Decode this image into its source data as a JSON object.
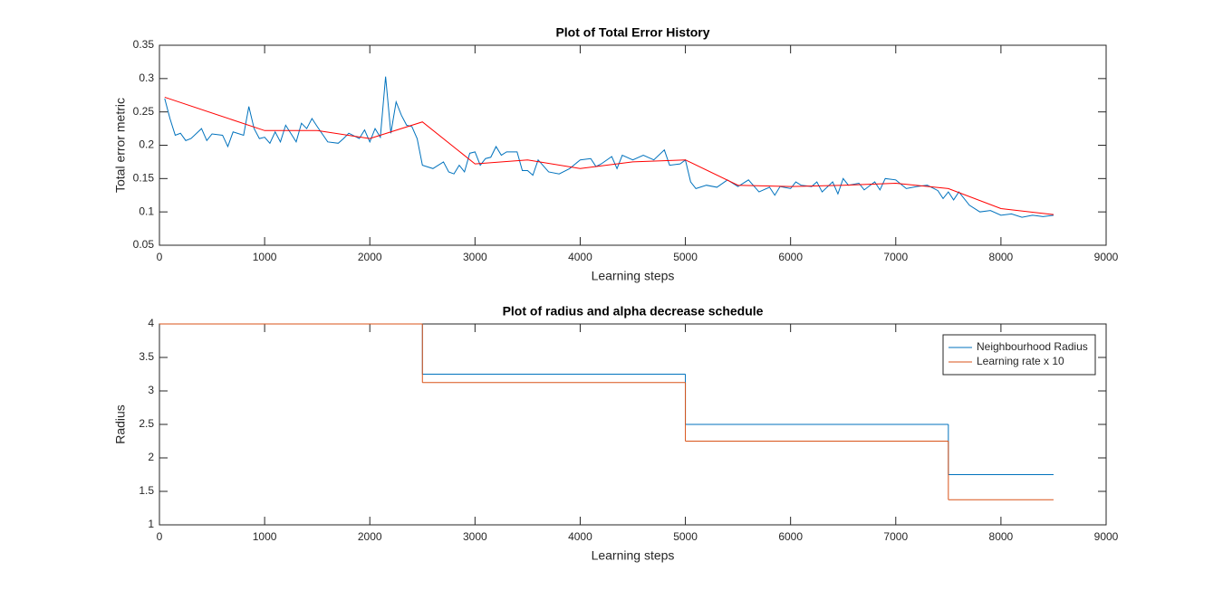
{
  "chart_data": [
    {
      "type": "line",
      "title": "Plot of Total Error History",
      "xlabel": "Learning steps",
      "ylabel": "Total error metric",
      "xlim": [
        0,
        9000
      ],
      "ylim": [
        0.05,
        0.35
      ],
      "xticks": [
        0,
        1000,
        2000,
        3000,
        4000,
        5000,
        6000,
        7000,
        8000,
        9000
      ],
      "yticks": [
        0.05,
        0.1,
        0.15,
        0.2,
        0.25,
        0.3,
        0.35
      ],
      "series": [
        {
          "color": "#0072BD",
          "x": [
            50,
            100,
            150,
            200,
            250,
            300,
            400,
            450,
            500,
            600,
            650,
            700,
            800,
            850,
            900,
            950,
            1000,
            1050,
            1100,
            1150,
            1200,
            1300,
            1350,
            1400,
            1450,
            1500,
            1600,
            1700,
            1750,
            1800,
            1900,
            1950,
            2000,
            2050,
            2100,
            2150,
            2200,
            2250,
            2300,
            2350,
            2400,
            2450,
            2500,
            2600,
            2700,
            2750,
            2800,
            2850,
            2900,
            2950,
            3000,
            3050,
            3100,
            3150,
            3200,
            3250,
            3300,
            3400,
            3450,
            3500,
            3550,
            3600,
            3700,
            3800,
            3900,
            4000,
            4100,
            4150,
            4200,
            4300,
            4350,
            4400,
            4500,
            4600,
            4700,
            4800,
            4850,
            4950,
            5000,
            5050,
            5100,
            5200,
            5300,
            5400,
            5500,
            5600,
            5700,
            5800,
            5850,
            5900,
            6000,
            6050,
            6100,
            6200,
            6250,
            6300,
            6400,
            6450,
            6500,
            6550,
            6650,
            6700,
            6800,
            6850,
            6900,
            7000,
            7100,
            7200,
            7300,
            7400,
            7450,
            7500,
            7550,
            7600,
            7700,
            7800,
            7900,
            8000,
            8100,
            8200,
            8300,
            8400,
            8500
          ],
          "values": [
            0.27,
            0.24,
            0.215,
            0.218,
            0.207,
            0.21,
            0.225,
            0.207,
            0.217,
            0.215,
            0.198,
            0.22,
            0.215,
            0.258,
            0.225,
            0.21,
            0.212,
            0.203,
            0.22,
            0.205,
            0.23,
            0.205,
            0.233,
            0.225,
            0.24,
            0.228,
            0.205,
            0.203,
            0.21,
            0.218,
            0.21,
            0.223,
            0.205,
            0.225,
            0.212,
            0.303,
            0.218,
            0.265,
            0.245,
            0.23,
            0.228,
            0.21,
            0.17,
            0.165,
            0.175,
            0.16,
            0.157,
            0.17,
            0.16,
            0.188,
            0.19,
            0.17,
            0.18,
            0.182,
            0.198,
            0.185,
            0.19,
            0.19,
            0.162,
            0.162,
            0.155,
            0.178,
            0.16,
            0.157,
            0.165,
            0.178,
            0.18,
            0.168,
            0.172,
            0.183,
            0.165,
            0.185,
            0.178,
            0.185,
            0.178,
            0.193,
            0.17,
            0.172,
            0.178,
            0.145,
            0.135,
            0.14,
            0.137,
            0.148,
            0.138,
            0.148,
            0.13,
            0.137,
            0.125,
            0.138,
            0.135,
            0.145,
            0.14,
            0.138,
            0.145,
            0.13,
            0.145,
            0.127,
            0.15,
            0.14,
            0.143,
            0.133,
            0.145,
            0.133,
            0.15,
            0.148,
            0.135,
            0.138,
            0.14,
            0.132,
            0.12,
            0.13,
            0.118,
            0.13,
            0.11,
            0.1,
            0.102,
            0.095,
            0.097,
            0.092,
            0.095,
            0.093,
            0.095
          ]
        },
        {
          "color": "#FF0000",
          "x": [
            50,
            1000,
            1500,
            2000,
            2500,
            3000,
            3500,
            4000,
            4500,
            5000,
            5500,
            6000,
            6500,
            7000,
            7500,
            8000,
            8500
          ],
          "values": [
            0.272,
            0.222,
            0.222,
            0.21,
            0.235,
            0.172,
            0.178,
            0.165,
            0.175,
            0.178,
            0.14,
            0.138,
            0.14,
            0.143,
            0.135,
            0.105,
            0.096
          ]
        }
      ]
    },
    {
      "type": "line",
      "step": "post",
      "title": "Plot of radius and alpha decrease schedule",
      "xlabel": "Learning steps",
      "ylabel": "Radius",
      "xlim": [
        0,
        9000
      ],
      "ylim": [
        1,
        4
      ],
      "xticks": [
        0,
        1000,
        2000,
        3000,
        4000,
        5000,
        6000,
        7000,
        8000,
        9000
      ],
      "yticks": [
        1,
        1.5,
        2,
        2.5,
        3,
        3.5,
        4
      ],
      "legend": "top-right",
      "series": [
        {
          "name": "Neighbourhood Radius",
          "color": "#0072BD",
          "x": [
            0,
            2500,
            5000,
            7500,
            8500
          ],
          "values": [
            4,
            3.25,
            2.5,
            1.75,
            1.75
          ]
        },
        {
          "name": "Learning rate x 10",
          "color": "#D95319",
          "x": [
            0,
            2500,
            5000,
            7500,
            8500
          ],
          "values": [
            4,
            3.125,
            2.25,
            1.375,
            1.375
          ]
        }
      ]
    }
  ]
}
